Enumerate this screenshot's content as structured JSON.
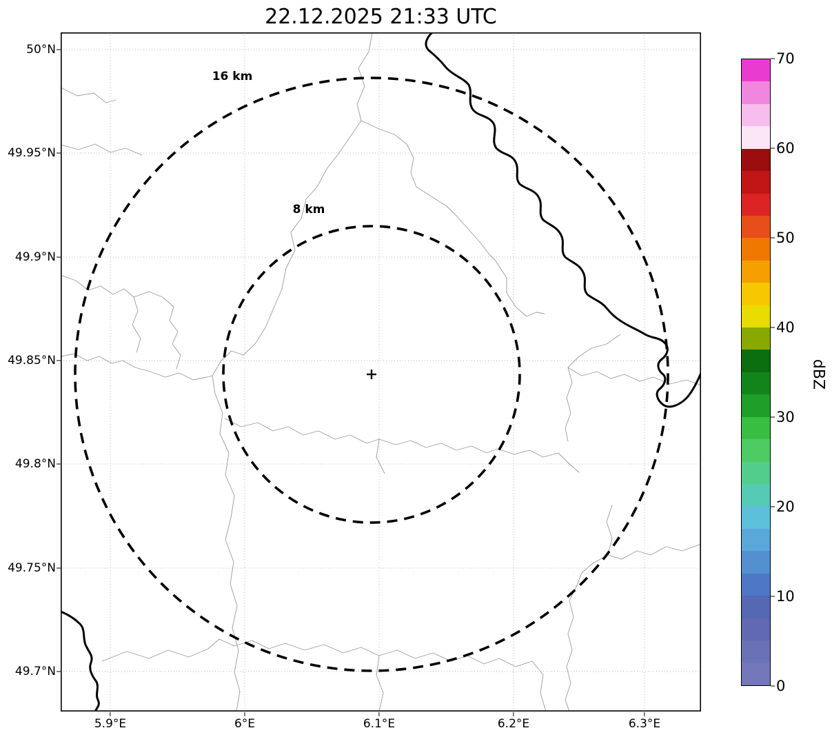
{
  "title": "22.12.2025 21:33 UTC",
  "plot": {
    "y_ticks": [
      "50°N",
      "49.95°N",
      "49.9°N",
      "49.85°N",
      "49.8°N",
      "49.75°N",
      "49.7°N"
    ],
    "x_ticks": [
      "5.9°E",
      "6°E",
      "6.1°E",
      "6.2°E",
      "6.3°E"
    ],
    "rings": {
      "outer_label": "16 km",
      "inner_label": "8 km"
    },
    "center_marker": "+"
  },
  "colorbar": {
    "label": "dBZ",
    "tick_labels_top_to_bottom": [
      "70",
      "60",
      "50",
      "40",
      "30",
      "20",
      "10",
      "0"
    ],
    "colors_bottom_to_top": [
      "#7477ba",
      "#6b71b6",
      "#6169b2",
      "#5568b4",
      "#4e77c6",
      "#5490d0",
      "#5aa8da",
      "#5cc0da",
      "#55cbb4",
      "#52cd8c",
      "#4ecb63",
      "#38bf41",
      "#1f9e28",
      "#12851a",
      "#0a6e0e",
      "#89a800",
      "#e8dc00",
      "#f7c800",
      "#f5a000",
      "#f07800",
      "#e84e1a",
      "#dd2424",
      "#c21616",
      "#9c0d0d",
      "#fbe6f7",
      "#f7bdec",
      "#f186df",
      "#ea3bd0"
    ]
  },
  "chart_data": {
    "type": "map",
    "title": "22.12.2025 21:33 UTC",
    "description": "Radar reflectivity map (no echoes visible) centered on a radar site, with 8 km and 16 km range rings, thin gray administrative boundaries and a thick black national border/river line.",
    "x_axis": {
      "ticks": [
        "5.9°E",
        "6°E",
        "6.1°E",
        "6.2°E",
        "6.3°E"
      ],
      "range_deg_e": [
        5.86,
        6.34
      ],
      "grid": true
    },
    "y_axis": {
      "ticks": [
        "50°N",
        "49.95°N",
        "49.9°N",
        "49.85°N",
        "49.8°N",
        "49.75°N",
        "49.7°N"
      ],
      "range_deg_n": [
        49.665,
        50.01
      ],
      "grid": true
    },
    "radar_center": {
      "lon_deg_e": 6.09,
      "lat_deg_n": 49.843,
      "marker": "+"
    },
    "range_rings_km": [
      8,
      16
    ],
    "colorbar": {
      "label": "dBZ",
      "min": 0,
      "max": 70,
      "tick_step": 10,
      "segment_step_dBZ": 2.5,
      "orientation": "vertical-right"
    },
    "radar_echoes": "none visible"
  }
}
